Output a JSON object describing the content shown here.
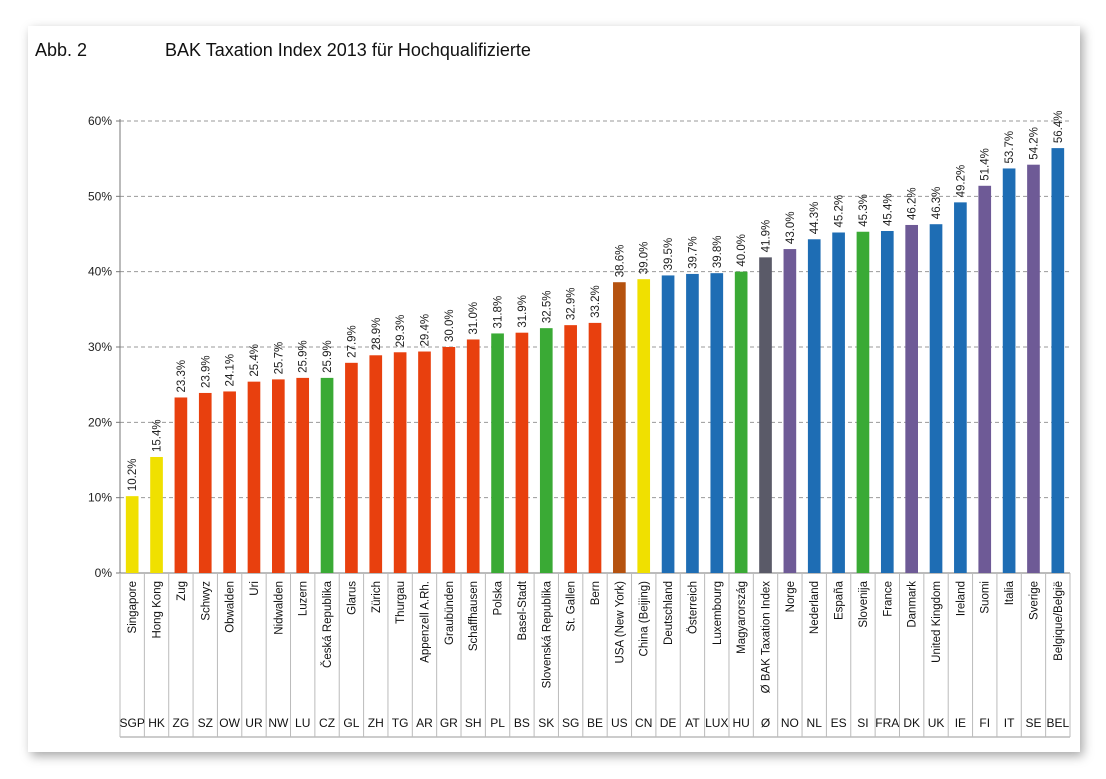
{
  "figure_label": "Abb. 2",
  "chart_data": {
    "type": "bar",
    "title": "BAK Taxation Index 2013 für Hochqualifizierte",
    "xlabel": "",
    "ylabel": "",
    "ylim": [
      0,
      60
    ],
    "yticks": [
      0,
      10,
      20,
      30,
      40,
      50,
      60
    ],
    "ytick_labels": [
      "0%",
      "10%",
      "20%",
      "30%",
      "40%",
      "50%",
      "60%"
    ],
    "grid": true,
    "legend": "none",
    "categories": [
      "Singapore",
      "Hong Kong",
      "Zug",
      "Schwyz",
      "Obwalden",
      "Uri",
      "Nidwalden",
      "Luzern",
      "Česká Republika",
      "Glarus",
      "Zürich",
      "Thurgau",
      "Appenzell A.Rh.",
      "Graubünden",
      "Schaffhausen",
      "Polska",
      "Basel-Stadt",
      "Slovenská Republika",
      "St. Gallen",
      "Bern",
      "USA (New York)",
      "China (Beijing)",
      "Deutschland",
      "Österreich",
      "Luxembourg",
      "Magyarország",
      "Ø BAK Taxation Index",
      "Norge",
      "Nederland",
      "España",
      "Slovenija",
      "France",
      "Danmark",
      "United Kingdom",
      "Ireland",
      "Suomi",
      "Italia",
      "Sverige",
      "Belgique/België"
    ],
    "codes": [
      "SGP",
      "HK",
      "ZG",
      "SZ",
      "OW",
      "UR",
      "NW",
      "LU",
      "CZ",
      "GL",
      "ZH",
      "TG",
      "AR",
      "GR",
      "SH",
      "PL",
      "BS",
      "SK",
      "SG",
      "BE",
      "US",
      "CN",
      "DE",
      "AT",
      "LUX",
      "HU",
      "Ø",
      "NO",
      "NL",
      "ES",
      "SI",
      "FRA",
      "DK",
      "UK",
      "IE",
      "FI",
      "IT",
      "SE",
      "BEL"
    ],
    "values": [
      10.2,
      15.4,
      23.3,
      23.9,
      24.1,
      25.4,
      25.7,
      25.9,
      25.9,
      27.9,
      28.9,
      29.3,
      29.4,
      30.0,
      31.0,
      31.8,
      31.9,
      32.5,
      32.9,
      33.2,
      38.6,
      39.0,
      39.5,
      39.7,
      39.8,
      40.0,
      41.9,
      43.0,
      44.3,
      45.2,
      45.3,
      45.4,
      46.2,
      46.3,
      49.2,
      51.4,
      53.7,
      54.2,
      56.4
    ],
    "value_labels": [
      "10.2%",
      "15.4%",
      "23.3%",
      "23.9%",
      "24.1%",
      "25.4%",
      "25.7%",
      "25.9%",
      "25.9%",
      "27.9%",
      "28.9%",
      "29.3%",
      "29.4%",
      "30.0%",
      "31.0%",
      "31.8%",
      "31.9%",
      "32.5%",
      "32.9%",
      "33.2%",
      "38.6%",
      "39.0%",
      "39.5%",
      "39.7%",
      "39.8%",
      "40.0%",
      "41.9%",
      "43.0%",
      "44.3%",
      "45.2%",
      "45.3%",
      "45.4%",
      "46.2%",
      "46.3%",
      "49.2%",
      "51.4%",
      "53.7%",
      "54.2%",
      "56.4%"
    ],
    "bar_colors": [
      "#f0e000",
      "#f0e000",
      "#e8400e",
      "#e8400e",
      "#e8400e",
      "#e8400e",
      "#e8400e",
      "#e8400e",
      "#3aaa35",
      "#e8400e",
      "#e8400e",
      "#e8400e",
      "#e8400e",
      "#e8400e",
      "#e8400e",
      "#3aaa35",
      "#e8400e",
      "#3aaa35",
      "#e8400e",
      "#e8400e",
      "#b5520f",
      "#f0e000",
      "#1e6db4",
      "#1e6db4",
      "#1e6db4",
      "#3aaa35",
      "#5a5a68",
      "#6e5a96",
      "#1e6db4",
      "#1e6db4",
      "#3aaa35",
      "#1e6db4",
      "#6e5a96",
      "#1e6db4",
      "#1e6db4",
      "#6e5a96",
      "#1e6db4",
      "#6e5a96",
      "#1e6db4"
    ]
  }
}
